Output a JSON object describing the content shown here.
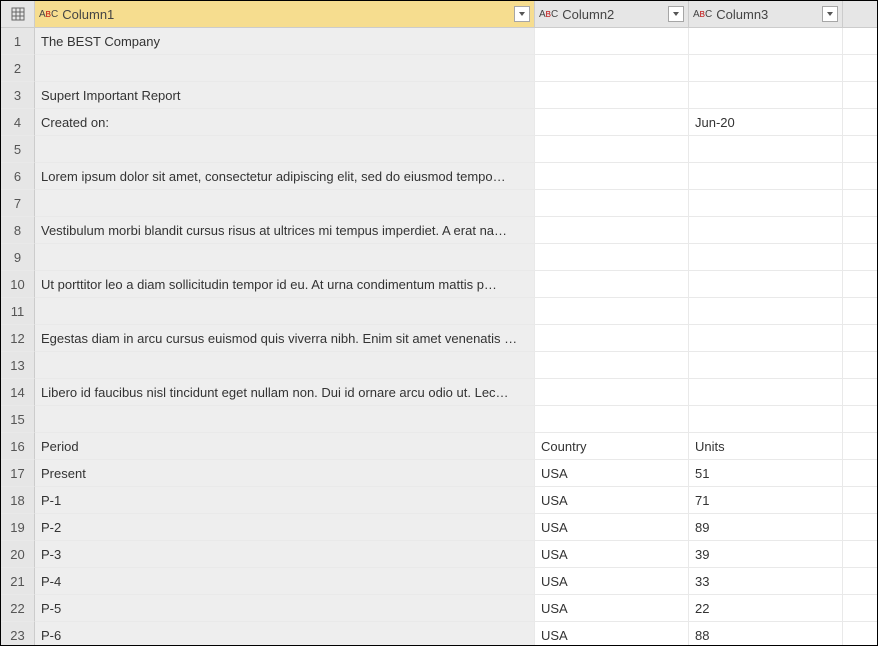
{
  "columns": [
    {
      "label": "Column1",
      "type_hint": "ABC",
      "selected": true
    },
    {
      "label": "Column2",
      "type_hint": "ABC",
      "selected": false
    },
    {
      "label": "Column3",
      "type_hint": "ABC",
      "selected": false
    }
  ],
  "rows": [
    {
      "n": "1",
      "c1": "The BEST Company",
      "c2": "",
      "c3": ""
    },
    {
      "n": "2",
      "c1": "",
      "c2": "",
      "c3": ""
    },
    {
      "n": "3",
      "c1": "Supert Important Report",
      "c2": "",
      "c3": ""
    },
    {
      "n": "4",
      "c1": "Created on:",
      "c2": "",
      "c3": "Jun-20"
    },
    {
      "n": "5",
      "c1": "",
      "c2": "",
      "c3": ""
    },
    {
      "n": "6",
      "c1": "Lorem ipsum dolor sit amet, consectetur adipiscing elit, sed do eiusmod tempo…",
      "c2": "",
      "c3": ""
    },
    {
      "n": "7",
      "c1": "",
      "c2": "",
      "c3": ""
    },
    {
      "n": "8",
      "c1": "Vestibulum morbi blandit cursus risus at ultrices mi tempus imperdiet. A erat na…",
      "c2": "",
      "c3": ""
    },
    {
      "n": "9",
      "c1": "",
      "c2": "",
      "c3": ""
    },
    {
      "n": "10",
      "c1": "Ut porttitor leo a diam sollicitudin tempor id eu. At urna condimentum mattis p…",
      "c2": "",
      "c3": ""
    },
    {
      "n": "11",
      "c1": "",
      "c2": "",
      "c3": ""
    },
    {
      "n": "12",
      "c1": "Egestas diam in arcu cursus euismod quis viverra nibh. Enim sit amet venenatis …",
      "c2": "",
      "c3": ""
    },
    {
      "n": "13",
      "c1": "",
      "c2": "",
      "c3": ""
    },
    {
      "n": "14",
      "c1": "Libero id faucibus nisl tincidunt eget nullam non. Dui id ornare arcu odio ut. Lec…",
      "c2": "",
      "c3": ""
    },
    {
      "n": "15",
      "c1": "",
      "c2": "",
      "c3": ""
    },
    {
      "n": "16",
      "c1": "Period",
      "c2": "Country",
      "c3": "Units"
    },
    {
      "n": "17",
      "c1": "Present",
      "c2": "USA",
      "c3": "51"
    },
    {
      "n": "18",
      "c1": "P-1",
      "c2": "USA",
      "c3": "71"
    },
    {
      "n": "19",
      "c1": "P-2",
      "c2": "USA",
      "c3": "89"
    },
    {
      "n": "20",
      "c1": "P-3",
      "c2": "USA",
      "c3": "39"
    },
    {
      "n": "21",
      "c1": "P-4",
      "c2": "USA",
      "c3": "33"
    },
    {
      "n": "22",
      "c1": "P-5",
      "c2": "USA",
      "c3": "22"
    },
    {
      "n": "23",
      "c1": "P-6",
      "c2": "USA",
      "c3": "88"
    }
  ],
  "colors": {
    "header_bg": "#e6e6e6",
    "selected_header_bg": "#f6dd8f",
    "selected_cell_bg": "#eeeeee",
    "grid_line": "#e9e9e9",
    "header_border": "#cccccc"
  }
}
